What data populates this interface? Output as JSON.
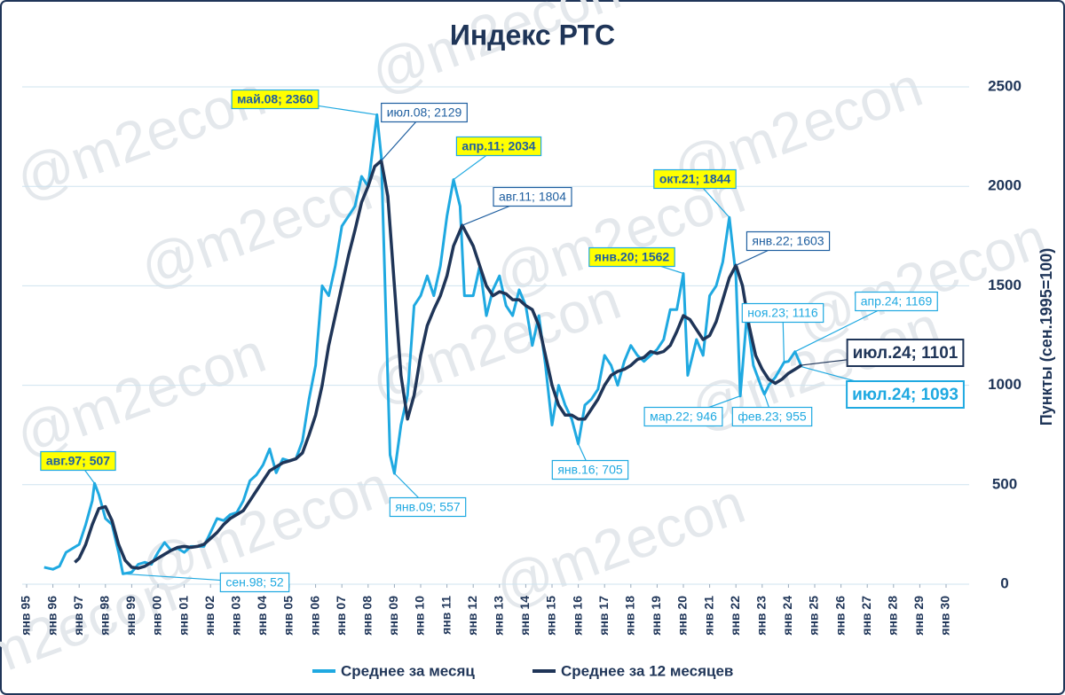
{
  "chart_data": {
    "type": "line",
    "title": "Индекс РТС",
    "watermark": "@m2econ",
    "y_label": "Пункты (сен.1995=100)",
    "xlim": [
      "янв 95",
      "янв 30"
    ],
    "xticks": [
      "янв 95",
      "янв 96",
      "янв 97",
      "янв 98",
      "янв 99",
      "янв 00",
      "янв 01",
      "янв 02",
      "янв 03",
      "янв 04",
      "янв 05",
      "янв 06",
      "янв 07",
      "янв 08",
      "янв 09",
      "янв 10",
      "янв 11",
      "янв 12",
      "янв 13",
      "янв 14",
      "янв 15",
      "янв 16",
      "янв 17",
      "янв 18",
      "янв 19",
      "янв 20",
      "янв 21",
      "янв 22",
      "янв 23",
      "янв 24",
      "янв 25",
      "янв 26",
      "янв 27",
      "янв 28",
      "янв 29",
      "янв 30"
    ],
    "ylim": [
      0,
      2500
    ],
    "yticks": [
      0,
      500,
      1000,
      1500,
      2000,
      2500
    ],
    "grid": true,
    "series": [
      {
        "name": "Среднее за месяц",
        "color": "#1fa9e1",
        "x": [
          "сен 95",
          "янв 96",
          "апр 96",
          "июл 96",
          "окт 96",
          "янв 97",
          "апр 97",
          "июл 97",
          "авг 97",
          "окт 97",
          "янв 98",
          "апр 98",
          "июл 98",
          "сен 98",
          "янв 99",
          "апр 99",
          "июл 99",
          "окт 99",
          "янв 00",
          "апр 00",
          "июл 00",
          "окт 00",
          "янв 01",
          "апр 01",
          "июл 01",
          "окт 01",
          "янв 02",
          "апр 02",
          "июл 02",
          "окт 02",
          "янв 03",
          "апр 03",
          "июл 03",
          "окт 03",
          "янв 04",
          "апр 04",
          "июл 04",
          "окт 04",
          "янв 05",
          "апр 05",
          "июл 05",
          "окт 05",
          "янв 06",
          "апр 06",
          "июл 06",
          "окт 06",
          "янв 07",
          "апр 07",
          "июл 07",
          "окт 07",
          "янв 08",
          "май 08",
          "июл 08",
          "сен 08",
          "ноя 08",
          "янв 09",
          "апр 09",
          "июл 09",
          "окт 09",
          "янв 10",
          "апр 10",
          "июл 10",
          "окт 10",
          "янв 11",
          "апр 11",
          "июл 11",
          "сен 11",
          "янв 12",
          "апр 12",
          "июл 12",
          "окт 12",
          "янв 13",
          "апр 13",
          "июл 13",
          "окт 13",
          "янв 14",
          "апр 14",
          "июл 14",
          "окт 14",
          "янв 15",
          "апр 15",
          "июл 15",
          "окт 15",
          "янв 16",
          "апр 16",
          "июл 16",
          "окт 16",
          "янв 17",
          "апр 17",
          "июл 17",
          "окт 17",
          "янв 18",
          "апр 18",
          "июл 18",
          "окт 18",
          "янв 19",
          "апр 19",
          "июл 19",
          "окт 19",
          "янв 20",
          "мар 20",
          "июл 20",
          "окт 20",
          "янв 21",
          "апр 21",
          "июл 21",
          "окт 21",
          "янв 22",
          "мар 22",
          "июн 22",
          "сен 22",
          "янв 23",
          "фев 23",
          "апр 23",
          "июл 23",
          "ноя 23",
          "янв 24",
          "апр 24",
          "июл 24"
        ],
        "values": [
          85,
          75,
          90,
          160,
          180,
          200,
          300,
          420,
          507,
          450,
          330,
          300,
          160,
          52,
          60,
          100,
          110,
          100,
          160,
          210,
          170,
          180,
          160,
          190,
          190,
          190,
          260,
          330,
          320,
          350,
          360,
          420,
          520,
          550,
          600,
          680,
          560,
          630,
          620,
          630,
          720,
          930,
          1100,
          1500,
          1450,
          1600,
          1800,
          1850,
          1900,
          2050,
          2000,
          2360,
          2150,
          1400,
          650,
          557,
          800,
          950,
          1400,
          1450,
          1550,
          1450,
          1600,
          1850,
          2034,
          1900,
          1450,
          1450,
          1600,
          1350,
          1480,
          1550,
          1400,
          1350,
          1480,
          1400,
          1200,
          1350,
          1100,
          800,
          1000,
          900,
          830,
          705,
          900,
          930,
          980,
          1150,
          1100,
          1000,
          1120,
          1200,
          1150,
          1120,
          1150,
          1180,
          1230,
          1380,
          1380,
          1562,
          1050,
          1230,
          1150,
          1450,
          1500,
          1620,
          1844,
          1550,
          946,
          1350,
          1100,
          980,
          955,
          1000,
          1040,
          1116,
          1120,
          1169,
          1093
        ]
      },
      {
        "name": "Среднее за 12 месяцев",
        "color": "#1f3558",
        "x": [
          "ноя 96",
          "янв 97",
          "апр 97",
          "июл 97",
          "окт 97",
          "янв 98",
          "апр 98",
          "июл 98",
          "окт 98",
          "янв 99",
          "апр 99",
          "июл 99",
          "окт 99",
          "янв 00",
          "апр 00",
          "июл 00",
          "окт 00",
          "янв 01",
          "апр 01",
          "июл 01",
          "окт 01",
          "янв 02",
          "апр 02",
          "июл 02",
          "окт 02",
          "янв 03",
          "апр 03",
          "июл 03",
          "окт 03",
          "янв 04",
          "апр 04",
          "июл 04",
          "окт 04",
          "янв 05",
          "апр 05",
          "июл 05",
          "окт 05",
          "янв 06",
          "апр 06",
          "июл 06",
          "окт 06",
          "янв 07",
          "апр 07",
          "июл 07",
          "окт 07",
          "янв 08",
          "апр 08",
          "июл 08",
          "окт 08",
          "янв 09",
          "апр 09",
          "июл 09",
          "окт 09",
          "янв 10",
          "апр 10",
          "июл 10",
          "окт 10",
          "янв 11",
          "апр 11",
          "авг 11",
          "янв 12",
          "апр 12",
          "июл 12",
          "окт 12",
          "янв 13",
          "апр 13",
          "июл 13",
          "окт 13",
          "янв 14",
          "апр 14",
          "июл 14",
          "окт 14",
          "янв 15",
          "апр 15",
          "июл 15",
          "окт 15",
          "янв 16",
          "апр 16",
          "июл 16",
          "окт 16",
          "янв 17",
          "апр 17",
          "июл 17",
          "окт 17",
          "янв 18",
          "апр 18",
          "июл 18",
          "окт 18",
          "янв 19",
          "апр 19",
          "июл 19",
          "окт 19",
          "янв 20",
          "апр 20",
          "июл 20",
          "окт 20",
          "янв 21",
          "апр 21",
          "июл 21",
          "окт 21",
          "янв 22",
          "апр 22",
          "июл 22",
          "окт 22",
          "янв 23",
          "апр 23",
          "июл 23",
          "окт 23",
          "янв 24",
          "апр 24",
          "июл 24"
        ],
        "values": [
          110,
          130,
          200,
          300,
          380,
          390,
          320,
          200,
          120,
          85,
          80,
          90,
          110,
          130,
          150,
          170,
          185,
          190,
          185,
          190,
          200,
          230,
          260,
          300,
          330,
          350,
          370,
          420,
          470,
          520,
          570,
          590,
          610,
          620,
          630,
          660,
          750,
          850,
          1000,
          1200,
          1350,
          1500,
          1650,
          1780,
          1920,
          2000,
          2100,
          2129,
          1950,
          1500,
          1050,
          830,
          950,
          1150,
          1300,
          1380,
          1450,
          1550,
          1700,
          1804,
          1700,
          1600,
          1500,
          1450,
          1470,
          1460,
          1430,
          1430,
          1400,
          1380,
          1300,
          1150,
          1000,
          900,
          850,
          850,
          830,
          830,
          880,
          930,
          1000,
          1050,
          1070,
          1080,
          1100,
          1130,
          1140,
          1170,
          1160,
          1170,
          1200,
          1270,
          1350,
          1330,
          1280,
          1230,
          1250,
          1320,
          1430,
          1540,
          1603,
          1500,
          1300,
          1150,
          1080,
          1030,
          1010,
          1030,
          1060,
          1080,
          1101
        ]
      }
    ],
    "annotations": [
      {
        "text": "авг.97; 507",
        "x": "авг 97",
        "y": 507,
        "highlight": true
      },
      {
        "text": "сен.98; 52",
        "x": "сен 98",
        "y": 52,
        "color": "#1fa9e1"
      },
      {
        "text": "май.08; 2360",
        "x": "май 08",
        "y": 2360,
        "highlight": true
      },
      {
        "text": "июл.08; 2129",
        "x": "июл 08",
        "y": 2129,
        "color": "#1f5fa0"
      },
      {
        "text": "янв.09; 557",
        "x": "янв 09",
        "y": 557,
        "color": "#1fa9e1"
      },
      {
        "text": "апр.11; 2034",
        "x": "апр 11",
        "y": 2034,
        "highlight": true
      },
      {
        "text": "авг.11; 1804",
        "x": "авг 11",
        "y": 1804,
        "color": "#1f5fa0"
      },
      {
        "text": "янв.16; 705",
        "x": "янв 16",
        "y": 705,
        "color": "#1fa9e1"
      },
      {
        "text": "янв.20; 1562",
        "x": "янв 20",
        "y": 1562,
        "highlight": true
      },
      {
        "text": "окт.21; 1844",
        "x": "окт 21",
        "y": 1844,
        "highlight": true
      },
      {
        "text": "янв.22; 1603",
        "x": "янв 22",
        "y": 1603,
        "color": "#1f5fa0"
      },
      {
        "text": "мар.22; 946",
        "x": "мар 22",
        "y": 946,
        "color": "#1fa9e1"
      },
      {
        "text": "фев.23; 955",
        "x": "фев 23",
        "y": 955,
        "color": "#1fa9e1"
      },
      {
        "text": "ноя.23; 1116",
        "x": "ноя 23",
        "y": 1116,
        "color": "#1fa9e1"
      },
      {
        "text": "апр.24; 1169",
        "x": "апр 24",
        "y": 1169,
        "color": "#1fa9e1"
      },
      {
        "text": "июл.24; 1101",
        "x": "июл 24",
        "y": 1101,
        "color": "#1f3558",
        "large": true
      },
      {
        "text": "июл.24; 1093",
        "x": "июл 24",
        "y": 1093,
        "color": "#1fa9e1",
        "large": true
      }
    ]
  }
}
